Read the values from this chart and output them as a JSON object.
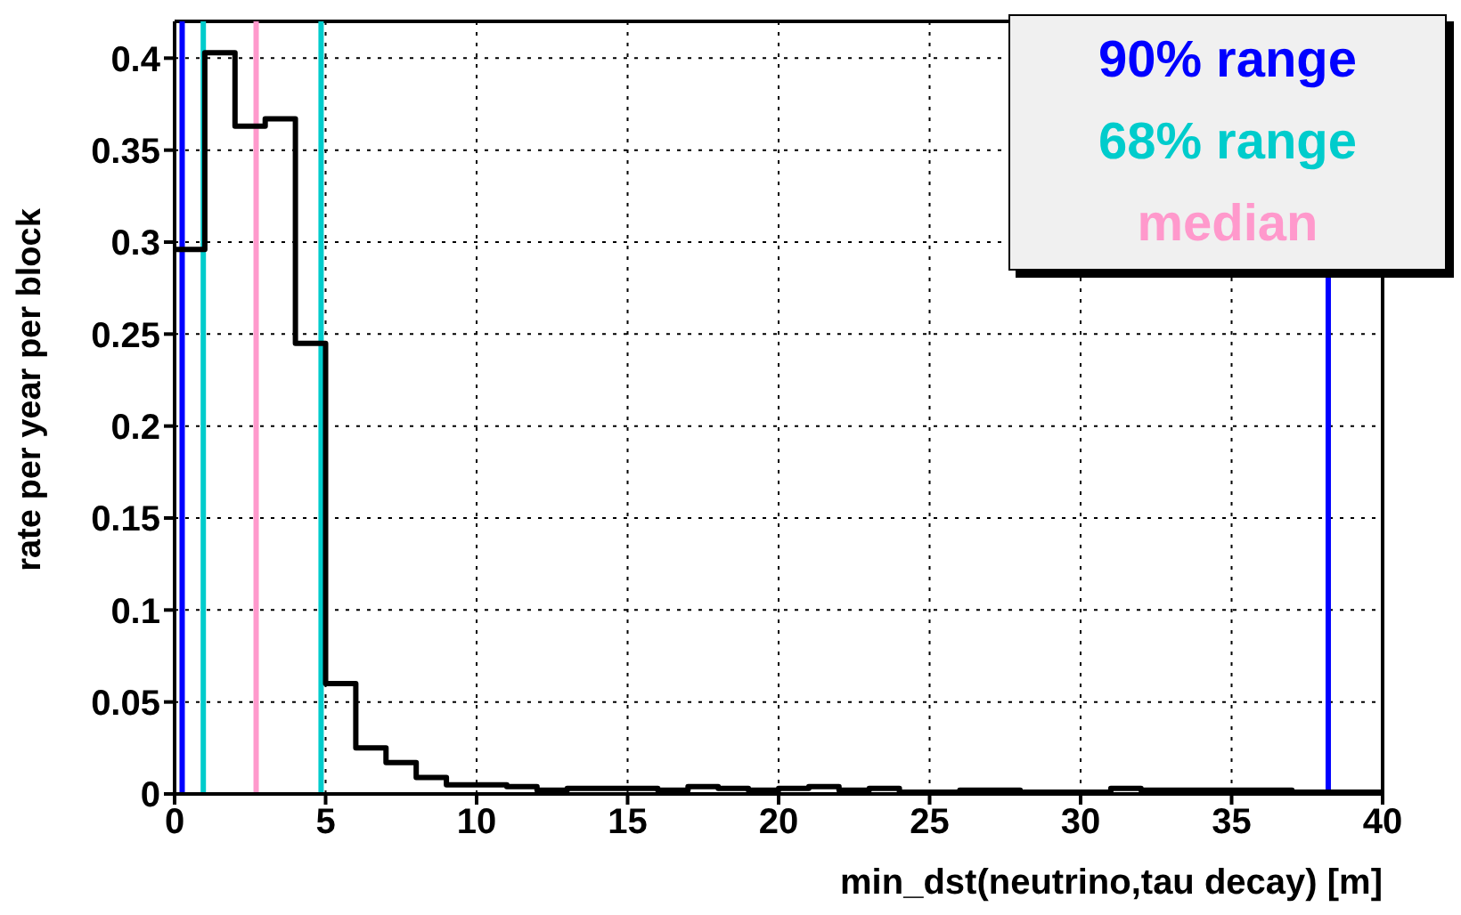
{
  "chart_data": {
    "type": "histogram",
    "xlabel": "min_dst(neutrino,tau decay) [m]",
    "ylabel": "rate per year per block",
    "bins": [
      0,
      1,
      2,
      3,
      4,
      5,
      6,
      7,
      8,
      9,
      10,
      11,
      12,
      13,
      14,
      15,
      16,
      17,
      18,
      19,
      20,
      21,
      22,
      23,
      24,
      25,
      26,
      27,
      28,
      29,
      30,
      31,
      32,
      33,
      34,
      35,
      36,
      37,
      38,
      39,
      40
    ],
    "values": [
      0.296,
      0.403,
      0.363,
      0.367,
      0.245,
      0.06,
      0.025,
      0.017,
      0.009,
      0.005,
      0.005,
      0.004,
      0.002,
      0.003,
      0.003,
      0.003,
      0.002,
      0.004,
      0.003,
      0.002,
      0.003,
      0.004,
      0.002,
      0.003,
      0.001,
      0.001,
      0.002,
      0.002,
      0.001,
      0.001,
      0.001,
      0.003,
      0.002,
      0.002,
      0.002,
      0.002,
      0.002,
      0.001,
      0.001,
      0.001
    ],
    "color": "#000000",
    "xlim": [
      0,
      40
    ],
    "xticks": [
      0,
      5,
      10,
      15,
      20,
      25,
      30,
      35,
      40
    ],
    "ylim": [
      0,
      0.42
    ],
    "yticks": [
      0,
      0.05,
      0.1,
      0.15,
      0.2,
      0.25,
      0.3,
      0.35,
      0.4
    ],
    "grid": true,
    "legend": "top right",
    "ref_lines": [
      {
        "axis": "x",
        "value": 0.25,
        "label": "90% range",
        "color": "#0000ff"
      },
      {
        "axis": "x",
        "value": 38.2,
        "color": "#0000ff"
      },
      {
        "axis": "x",
        "value": 0.95,
        "label": "68% range",
        "color": "#00cccc"
      },
      {
        "axis": "x",
        "value": 4.85,
        "color": "#00cccc"
      },
      {
        "axis": "x",
        "value": 2.7,
        "label": "median",
        "color": "#ff99cc"
      }
    ]
  }
}
